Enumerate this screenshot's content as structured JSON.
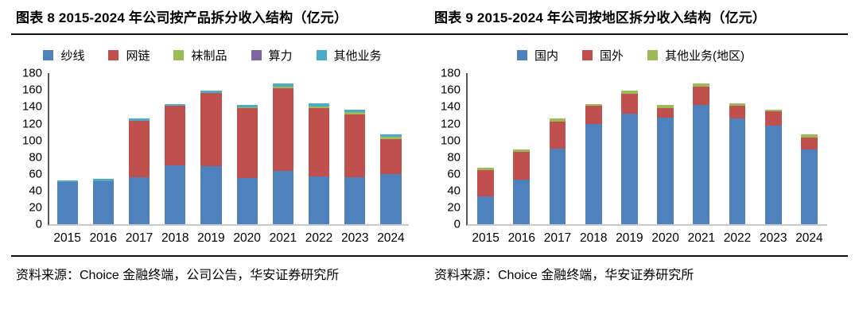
{
  "charts": [
    {
      "title": "图表 8 2015-2024 年公司按产品拆分收入结构（亿元）",
      "source": "资料来源：Choice 金融终端，公司公告，华安证券研究所",
      "bar_width_pct": 58,
      "chart_data": {
        "type": "bar",
        "stacked": true,
        "grid": false,
        "legend_position": "top",
        "title": "图表 8 2015-2024 年公司按产品拆分收入结构（亿元）",
        "xlabel": "",
        "ylabel": "",
        "ylim": [
          0,
          180
        ],
        "ytick_step": 20,
        "categories": [
          "2015",
          "2016",
          "2017",
          "2018",
          "2019",
          "2020",
          "2021",
          "2022",
          "2023",
          "2024"
        ],
        "series": [
          {
            "name": "纱线",
            "color": "#4F81BD",
            "values": [
              50,
              51,
              56,
              70,
              69,
              55,
              64,
              57,
              56,
              60
            ]
          },
          {
            "name": "网链",
            "color": "#C0504D",
            "values": [
              0,
              0,
              67.5,
              71,
              88,
              83.5,
              98,
              81.5,
              75,
              42
            ]
          },
          {
            "name": "袜制品",
            "color": "#9BBB59",
            "values": [
              0,
              0,
              0,
              0,
              0,
              1.5,
              2.5,
              2,
              3,
              2.5
            ]
          },
          {
            "name": "算力",
            "color": "#8064A2",
            "values": [
              0,
              0,
              0,
              0,
              0,
              0,
              0,
              0,
              0,
              0
            ]
          },
          {
            "name": "其他业务",
            "color": "#4BACC6",
            "values": [
              2.5,
              3,
              3,
              2.5,
              2,
              2.5,
              3,
              3.5,
              3,
              3
            ]
          }
        ]
      }
    },
    {
      "title": "图表 9 2015-2024 年公司按地区拆分收入结构（亿元）",
      "source": "资料来源：Choice 金融终端，华安证券研究所",
      "bar_width_pct": 46,
      "chart_data": {
        "type": "bar",
        "stacked": true,
        "grid": false,
        "legend_position": "top",
        "title": "图表 9 2015-2024 年公司按地区拆分收入结构（亿元）",
        "xlabel": "",
        "ylabel": "",
        "ylim": [
          0,
          180
        ],
        "ytick_step": 20,
        "categories": [
          "2015",
          "2016",
          "2017",
          "2018",
          "2019",
          "2020",
          "2021",
          "2022",
          "2023",
          "2024"
        ],
        "series": [
          {
            "name": "国内",
            "color": "#4F81BD",
            "values": [
              33,
              53,
              90,
              120,
              132,
              127,
              142.5,
              126,
              117.5,
              89.5
            ]
          },
          {
            "name": "国外",
            "color": "#C0504D",
            "values": [
              31.5,
              33.5,
              32.5,
              21,
              24,
              12,
              21.5,
              15.5,
              17,
              14
            ]
          },
          {
            "name": "其他业务(地区)",
            "color": "#9BBB59",
            "values": [
              3,
              3,
              4,
              2.5,
              3,
              3.5,
              3.5,
              2.5,
              2.5,
              4
            ]
          }
        ]
      }
    }
  ]
}
